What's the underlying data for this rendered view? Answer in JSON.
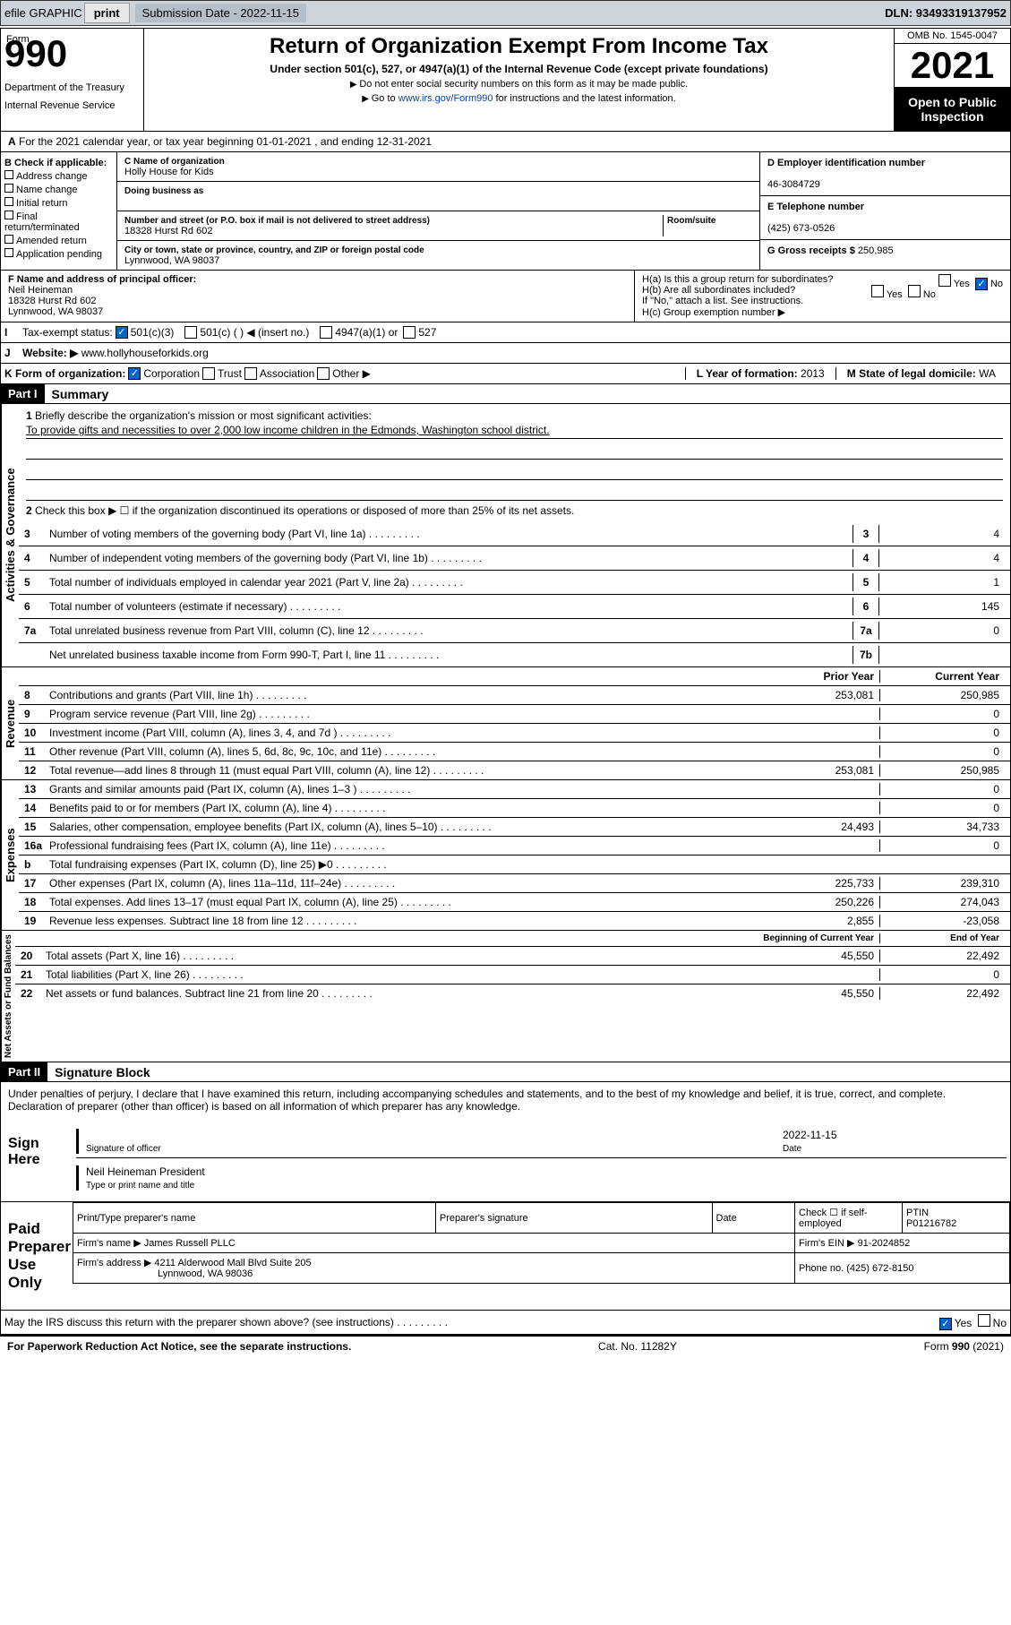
{
  "topbar": {
    "efile": "efile GRAPHIC",
    "print": "print",
    "subdate_lbl": "Submission Date - 2022-11-15",
    "dln": "DLN: 93493319137952"
  },
  "header": {
    "form": "990",
    "form_prefix": "Form",
    "title": "Return of Organization Exempt From Income Tax",
    "sub": "Under section 501(c), 527, or 4947(a)(1) of the Internal Revenue Code (except private foundations)",
    "l1": "Do not enter social security numbers on this form as it may be made public.",
    "l2_pre": "Go to ",
    "l2_link": "www.irs.gov/Form990",
    "l2_post": " for instructions and the latest information.",
    "dept": "Department of the Treasury",
    "irs": "Internal Revenue Service",
    "omb": "OMB No. 1545-0047",
    "year": "2021",
    "insp": "Open to Public Inspection"
  },
  "A": {
    "text": "For the 2021 calendar year, or tax year beginning 01-01-2021   , and ending 12-31-2021"
  },
  "B": {
    "lbl": "B Check if applicable:",
    "opts": [
      "Address change",
      "Name change",
      "Initial return",
      "Final return/terminated",
      "Amended return",
      "Application pending"
    ]
  },
  "C": {
    "name_lbl": "C Name of organization",
    "name": "Holly House for Kids",
    "dba_lbl": "Doing business as",
    "addr_lbl": "Number and street (or P.O. box if mail is not delivered to street address)",
    "room_lbl": "Room/suite",
    "addr": "18328 Hurst Rd 602",
    "city_lbl": "City or town, state or province, country, and ZIP or foreign postal code",
    "city": "Lynnwood, WA  98037"
  },
  "D": {
    "lbl": "D Employer identification number",
    "val": "46-3084729"
  },
  "E": {
    "lbl": "E Telephone number",
    "val": "(425) 673-0526"
  },
  "G": {
    "lbl": "G Gross receipts $",
    "val": "250,985"
  },
  "F": {
    "lbl": "F  Name and address of principal officer:",
    "name": "Neil Heineman",
    "addr1": "18328 Hurst Rd 602",
    "addr2": "Lynnwood, WA  98037"
  },
  "H": {
    "a": "H(a)  Is this a group return for subordinates?",
    "b": "H(b)  Are all subordinates included?",
    "note": "If \"No,\" attach a list. See instructions.",
    "c": "H(c)  Group exemption number ▶"
  },
  "I": {
    "lbl": "Tax-exempt status:",
    "opts": [
      "501(c)(3)",
      "501(c) (  ) ◀ (insert no.)",
      "4947(a)(1) or",
      "527"
    ]
  },
  "J": {
    "lbl": "Website: ▶",
    "val": "www.hollyhouseforkids.org"
  },
  "K": {
    "lbl": "K Form of organization:",
    "opts": [
      "Corporation",
      "Trust",
      "Association",
      "Other ▶"
    ]
  },
  "L": {
    "lbl": "L Year of formation:",
    "val": "2013"
  },
  "M": {
    "lbl": "M State of legal domicile:",
    "val": "WA"
  },
  "part1": {
    "hdr": "Part I",
    "title": "Summary"
  },
  "gov": {
    "label": "Activities & Governance",
    "l1": "Briefly describe the organization's mission or most significant activities:",
    "mission": "To provide gifts and necessities to over 2,000 low income children in the Edmonds, Washington school district.",
    "l2": "Check this box ▶ ☐  if the organization discontinued its operations or disposed of more than 25% of its net assets.",
    "lines": [
      {
        "n": "3",
        "t": "Number of voting members of the governing body (Part VI, line 1a)",
        "bx": "3",
        "v": "4"
      },
      {
        "n": "4",
        "t": "Number of independent voting members of the governing body (Part VI, line 1b)",
        "bx": "4",
        "v": "4"
      },
      {
        "n": "5",
        "t": "Total number of individuals employed in calendar year 2021 (Part V, line 2a)",
        "bx": "5",
        "v": "1"
      },
      {
        "n": "6",
        "t": "Total number of volunteers (estimate if necessary)",
        "bx": "6",
        "v": "145"
      },
      {
        "n": "7a",
        "t": "Total unrelated business revenue from Part VIII, column (C), line 12",
        "bx": "7a",
        "v": "0"
      },
      {
        "n": " ",
        "t": "Net unrelated business taxable income from Form 990-T, Part I, line 11",
        "bx": "7b",
        "v": ""
      }
    ]
  },
  "rev": {
    "label": "Revenue",
    "hdr1": "Prior Year",
    "hdr2": "Current Year",
    "lines": [
      {
        "n": "8",
        "t": "Contributions and grants (Part VIII, line 1h)",
        "p": "253,081",
        "c": "250,985"
      },
      {
        "n": "9",
        "t": "Program service revenue (Part VIII, line 2g)",
        "p": "",
        "c": "0"
      },
      {
        "n": "10",
        "t": "Investment income (Part VIII, column (A), lines 3, 4, and 7d )",
        "p": "",
        "c": "0"
      },
      {
        "n": "11",
        "t": "Other revenue (Part VIII, column (A), lines 5, 6d, 8c, 9c, 10c, and 11e)",
        "p": "",
        "c": "0"
      },
      {
        "n": "12",
        "t": "Total revenue—add lines 8 through 11 (must equal Part VIII, column (A), line 12)",
        "p": "253,081",
        "c": "250,985"
      }
    ]
  },
  "exp": {
    "label": "Expenses",
    "lines": [
      {
        "n": "13",
        "t": "Grants and similar amounts paid (Part IX, column (A), lines 1–3 )",
        "p": "",
        "c": "0"
      },
      {
        "n": "14",
        "t": "Benefits paid to or for members (Part IX, column (A), line 4)",
        "p": "",
        "c": "0"
      },
      {
        "n": "15",
        "t": "Salaries, other compensation, employee benefits (Part IX, column (A), lines 5–10)",
        "p": "24,493",
        "c": "34,733"
      },
      {
        "n": "16a",
        "t": "Professional fundraising fees (Part IX, column (A), line 11e)",
        "p": "",
        "c": "0"
      },
      {
        "n": "b",
        "t": "Total fundraising expenses (Part IX, column (D), line 25) ▶0",
        "p": "",
        "c": "",
        "shade": true
      },
      {
        "n": "17",
        "t": "Other expenses (Part IX, column (A), lines 11a–11d, 11f–24e)",
        "p": "225,733",
        "c": "239,310"
      },
      {
        "n": "18",
        "t": "Total expenses. Add lines 13–17 (must equal Part IX, column (A), line 25)",
        "p": "250,226",
        "c": "274,043"
      },
      {
        "n": "19",
        "t": "Revenue less expenses. Subtract line 18 from line 12",
        "p": "2,855",
        "c": "-23,058"
      }
    ]
  },
  "net": {
    "label": "Net Assets or Fund Balances",
    "hdr1": "Beginning of Current Year",
    "hdr2": "End of Year",
    "lines": [
      {
        "n": "20",
        "t": "Total assets (Part X, line 16)",
        "p": "45,550",
        "c": "22,492"
      },
      {
        "n": "21",
        "t": "Total liabilities (Part X, line 26)",
        "p": "",
        "c": "0"
      },
      {
        "n": "22",
        "t": "Net assets or fund balances. Subtract line 21 from line 20",
        "p": "45,550",
        "c": "22,492"
      }
    ]
  },
  "part2": {
    "hdr": "Part II",
    "title": "Signature Block"
  },
  "sig": {
    "decl": "Under penalties of perjury, I declare that I have examined this return, including accompanying schedules and statements, and to the best of my knowledge and belief, it is true, correct, and complete. Declaration of preparer (other than officer) is based on all information of which preparer has any knowledge.",
    "here": "Sign Here",
    "sigoff": "Signature of officer",
    "date": "Date",
    "dateval": "2022-11-15",
    "name": "Neil Heineman  President",
    "typelbl": "Type or print name and title"
  },
  "prep": {
    "lbl": "Paid Preparer Use Only",
    "h": [
      "Print/Type preparer's name",
      "Preparer's signature",
      "Date"
    ],
    "chk": "Check ☐ if self-employed",
    "ptin_lbl": "PTIN",
    "ptin": "P01216782",
    "firm_lbl": "Firm's name   ▶",
    "firm": "James Russell PLLC",
    "ein_lbl": "Firm's EIN ▶",
    "ein": "91-2024852",
    "addr_lbl": "Firm's address ▶",
    "addr": "4211 Alderwood Mall Blvd Suite 205",
    "addr2": "Lynnwood, WA  98036",
    "ph_lbl": "Phone no.",
    "ph": "(425) 672-8150"
  },
  "may": {
    "t": "May the IRS discuss this return with the preparer shown above? (see instructions)",
    "yes": "Yes",
    "no": "No"
  },
  "foot": {
    "l": "For Paperwork Reduction Act Notice, see the separate instructions.",
    "c": "Cat. No. 11282Y",
    "r": "Form 990 (2021)"
  }
}
